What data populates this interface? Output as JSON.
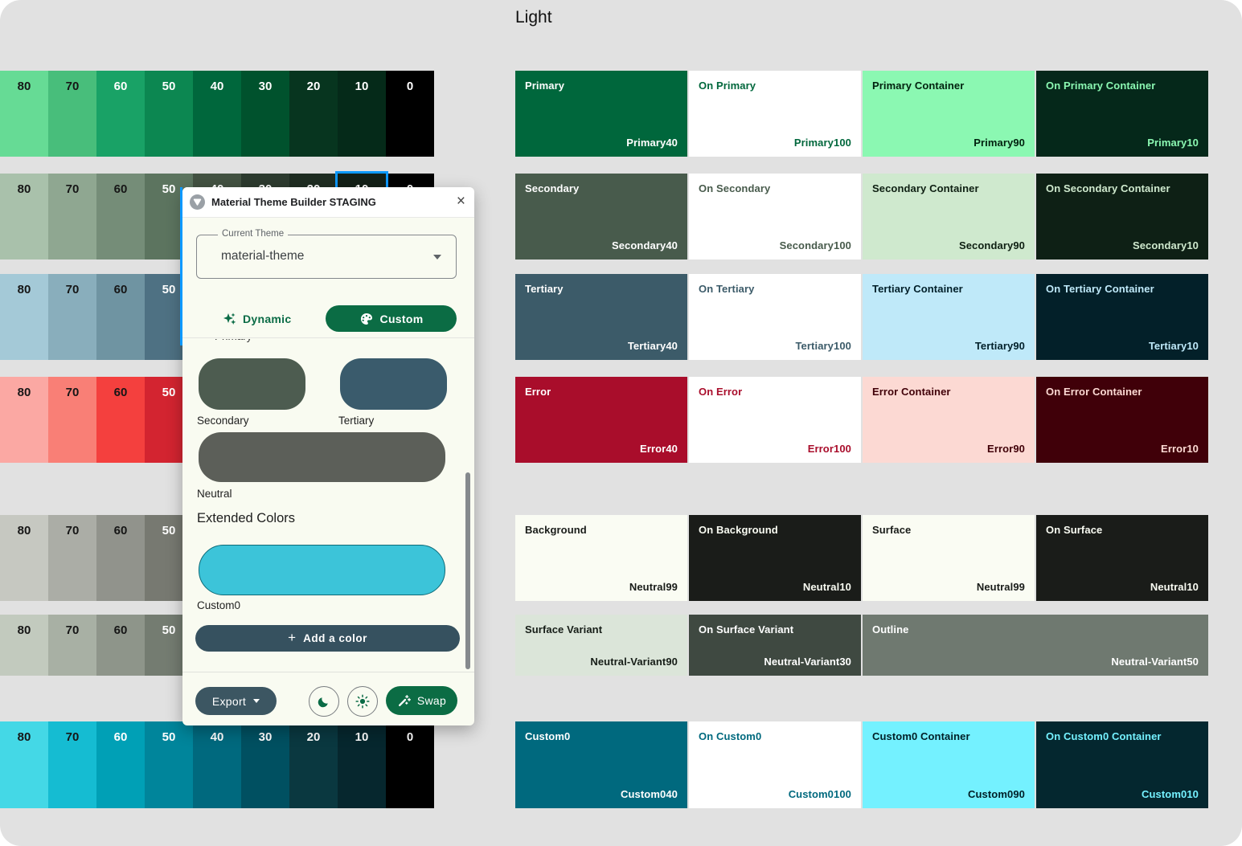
{
  "scheme_title": "Light",
  "selection_color": "#0D99FF",
  "tonal_palettes": {
    "tone_labels": [
      "80",
      "70",
      "60",
      "50",
      "40",
      "30",
      "20",
      "10",
      "0"
    ],
    "rows": [
      {
        "name": "primary",
        "dark_labels": 2,
        "colors": [
          "#66DB95",
          "#48BE7B",
          "#19A266",
          "#0C8751",
          "#00673C",
          "#00522D",
          "#07351F",
          "#052A19",
          "#000000"
        ]
      },
      {
        "name": "secondary",
        "dark_labels": 3,
        "colors": [
          "#A9C1AB",
          "#8FA791",
          "#758D78",
          "#5C745F",
          "#435242",
          "#2D3B2F",
          "#1F2D22",
          "#132017",
          "#000000"
        ]
      },
      {
        "name": "tertiary",
        "dark_labels": 3,
        "colors": [
          "#A4C9D7",
          "#89AEBC",
          "#6F94A2",
          "#4E7183",
          "#36596A",
          "#21414F",
          "#0F2D39",
          "#061E28",
          "#000000"
        ]
      },
      {
        "name": "error",
        "dark_labels": 3,
        "colors": [
          "#FBA8A3",
          "#F97F76",
          "#F4403E",
          "#D32430",
          "#AC0E26",
          "#85001E",
          "#600014",
          "#3B000A",
          "#000000"
        ]
      },
      {
        "name": "neutral",
        "dark_labels": 3,
        "colors": [
          "#C6C8C1",
          "#ABADA6",
          "#91938C",
          "#777971",
          "#5E605A",
          "#464843",
          "#30322D",
          "#1B1D19",
          "#000000"
        ]
      },
      {
        "name": "neutral-variant",
        "dark_labels": 3,
        "colors": [
          "#C2CABE",
          "#A8B0A4",
          "#8E958A",
          "#747C71",
          "#5B635A",
          "#434B42",
          "#2D352D",
          "#181F18",
          "#000000"
        ]
      },
      {
        "name": "custom0",
        "dark_labels": 2,
        "colors": [
          "#44D8E6",
          "#15BCD2",
          "#00A0B6",
          "#00859B",
          "#00697E",
          "#005061",
          "#0A3840",
          "#06272E",
          "#000000"
        ]
      }
    ]
  },
  "scheme": {
    "rows": [
      {
        "cells": [
          {
            "label": "Primary",
            "tone": "Primary40",
            "bg": "#00673C",
            "fg": "#FFFFFF"
          },
          {
            "label": "On Primary",
            "tone": "Primary100",
            "bg": "#FFFFFF",
            "fg": "#00673C"
          },
          {
            "label": "Primary Container",
            "tone": "Primary90",
            "bg": "#8BF8B2",
            "fg": "#00210E"
          },
          {
            "label": "On Primary Container",
            "tone": "Primary10",
            "bg": "#05281A",
            "fg": "#8BF8B2"
          }
        ]
      },
      {
        "cells": [
          {
            "label": "Secondary",
            "tone": "Secondary40",
            "bg": "#485B4C",
            "fg": "#FFFFFF"
          },
          {
            "label": "On Secondary",
            "tone": "Secondary100",
            "bg": "#FFFFFF",
            "fg": "#485B4C"
          },
          {
            "label": "Secondary Container",
            "tone": "Secondary90",
            "bg": "#CFE9CE",
            "fg": "#0E1F12"
          },
          {
            "label": "On Secondary Container",
            "tone": "Secondary10",
            "bg": "#0E2015",
            "fg": "#CFE9CE"
          }
        ]
      },
      {
        "cells": [
          {
            "label": "Tertiary",
            "tone": "Tertiary40",
            "bg": "#3C5B69",
            "fg": "#FFFFFF"
          },
          {
            "label": "On Tertiary",
            "tone": "Tertiary100",
            "bg": "#FFFFFF",
            "fg": "#3C5B69"
          },
          {
            "label": "Tertiary Container",
            "tone": "Tertiary90",
            "bg": "#BFE9F9",
            "fg": "#001F29"
          },
          {
            "label": "On Tertiary Container",
            "tone": "Tertiary10",
            "bg": "#032029",
            "fg": "#BFE9F9"
          }
        ]
      },
      {
        "cells": [
          {
            "label": "Error",
            "tone": "Error40",
            "bg": "#A90D2B",
            "fg": "#FFFFFF"
          },
          {
            "label": "On Error",
            "tone": "Error100",
            "bg": "#FFFFFF",
            "fg": "#A90D2B"
          },
          {
            "label": "Error Container",
            "tone": "Error90",
            "bg": "#FCD9D3",
            "fg": "#400008"
          },
          {
            "label": "On Error Container",
            "tone": "Error10",
            "bg": "#400009",
            "fg": "#FCD9D3"
          }
        ]
      },
      {
        "cells": [
          {
            "label": "Background",
            "tone": "Neutral99",
            "bg": "#FAFCF3",
            "fg": "#191C19"
          },
          {
            "label": "On Background",
            "tone": "Neutral10",
            "bg": "#1A1C19",
            "fg": "#FAFCF3"
          },
          {
            "label": "Surface",
            "tone": "Neutral99",
            "bg": "#FAFCF3",
            "fg": "#191C19"
          },
          {
            "label": "On Surface",
            "tone": "Neutral10",
            "bg": "#1A1C19",
            "fg": "#FAFCF3"
          }
        ]
      },
      {
        "cells": [
          {
            "label": "Surface Variant",
            "tone": "Neutral-Variant90",
            "bg": "#DBE5D9",
            "fg": "#161D17"
          },
          {
            "label": "On Surface Variant",
            "tone": "Neutral-Variant30",
            "bg": "#3F4941",
            "fg": "#FFFFFF"
          },
          {
            "label": "Outline",
            "tone": "Neutral-Variant50",
            "bg": "#6F7970",
            "fg": "#FFFFFF",
            "wide": true
          }
        ]
      },
      {
        "cells": [
          {
            "label": "Custom0",
            "tone": "Custom040",
            "bg": "#00697E",
            "fg": "#FFFFFF"
          },
          {
            "label": "On Custom0",
            "tone": "Custom0100",
            "bg": "#FFFFFF",
            "fg": "#00697E"
          },
          {
            "label": "Custom0 Container",
            "tone": "Custom090",
            "bg": "#74F1FF",
            "fg": "#001F26"
          },
          {
            "label": "On Custom0 Container",
            "tone": "Custom010",
            "bg": "#04272F",
            "fg": "#74F1FF"
          }
        ]
      }
    ]
  },
  "dialog": {
    "title": "Material Theme Builder STAGING",
    "close_glyph": "×",
    "theme_field": {
      "label": "Current Theme",
      "value": "material-theme"
    },
    "tabs": {
      "dynamic": "Dynamic",
      "custom": "Custom"
    },
    "partial_label": "Primary",
    "core_swatches": [
      {
        "label": "Secondary",
        "color": "#4D5C50"
      },
      {
        "label": "Tertiary",
        "color": "#3A5B6C"
      },
      {
        "label": "Neutral",
        "color": "#5C5F59"
      }
    ],
    "extended_heading": "Extended Colors",
    "extended_swatch": {
      "label": "Custom0",
      "color": "#3CC4D9"
    },
    "add_color_label": "Add a color",
    "add_color_plus": "+",
    "footer": {
      "export_label": "Export",
      "swap_label": "Swap"
    }
  }
}
